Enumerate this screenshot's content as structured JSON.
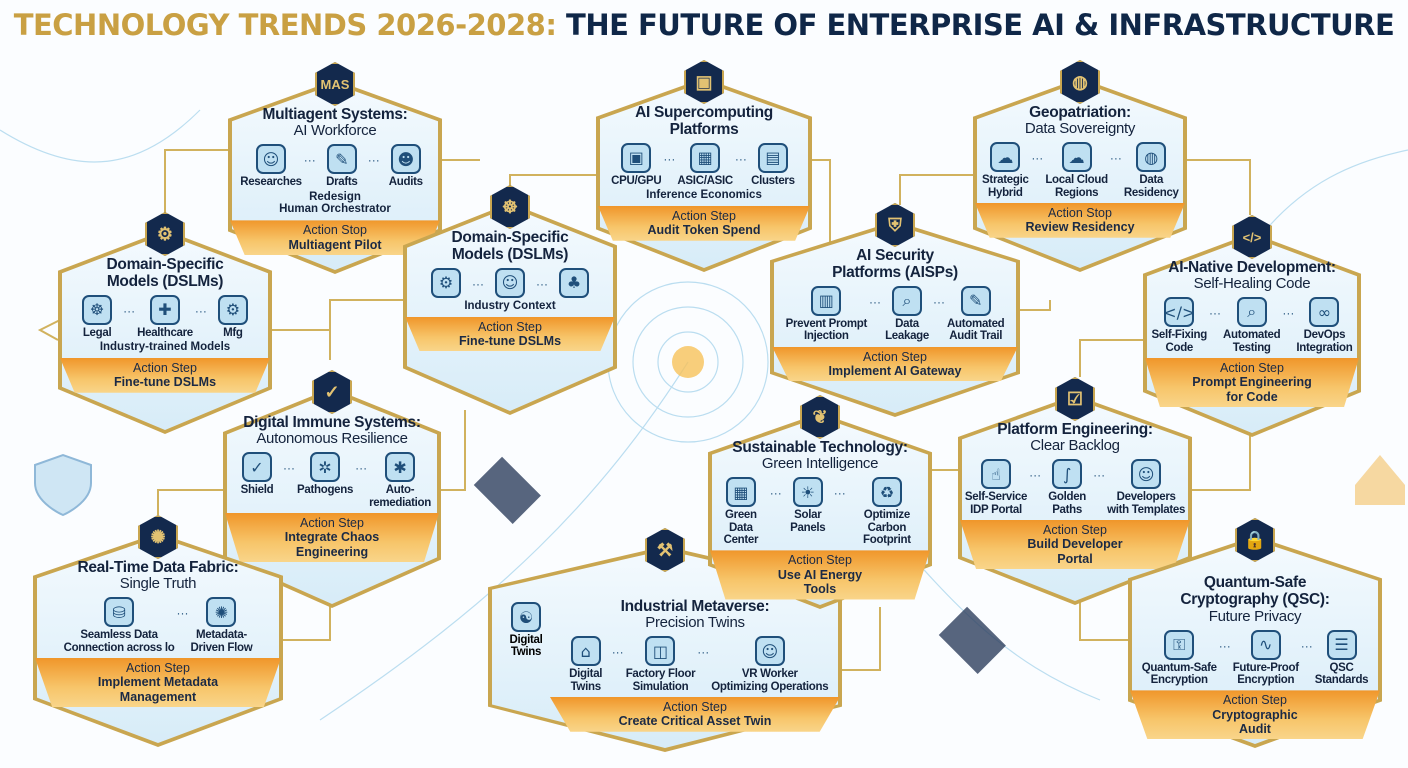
{
  "header": {
    "title_gold": "TECHNOLOGY TRENDS 2026-2028:",
    "title_navy": " THE FUTURE OF ENTERPRISE AI & INFRASTRUCTURE"
  },
  "colors": {
    "gold": "#c9a043",
    "navy": "#0f2748",
    "action_orange": "#f0962a",
    "panel_blue": "#d7ecf8"
  },
  "cards": [
    {
      "id": "mas",
      "badge": "MAS",
      "badge_is_text": true,
      "title": "Multiagent Systems:",
      "subtitle": "AI Workforce",
      "items": [
        {
          "label": "Researches",
          "icon": "robot-icon",
          "glyph": "☺"
        },
        {
          "label": "Drafts",
          "icon": "document-pen-icon",
          "glyph": "✎"
        },
        {
          "label": "Audits",
          "icon": "person-chat-icon",
          "glyph": "☻"
        }
      ],
      "note": "Redesign\nHuman Orchestrator",
      "action_label": "Action Stop",
      "action": "Multiagent Pilot"
    },
    {
      "id": "dslm-left",
      "badge": "⚙",
      "badge_icon": "network-gear-icon",
      "title": "Domain-Specific\nModels (DSLMs)",
      "subtitle": "",
      "items": [
        {
          "label": "Legal",
          "icon": "brain-icon",
          "glyph": "☸"
        },
        {
          "label": "Healthcare",
          "icon": "brain-health-icon",
          "glyph": "✚"
        },
        {
          "label": "Mfg",
          "icon": "gear-icon",
          "glyph": "⚙"
        }
      ],
      "note": "Industry-trained Models",
      "action_label": "Action Step",
      "action": "Fine-tune DSLMs"
    },
    {
      "id": "dslm-center",
      "badge": "☸",
      "badge_icon": "brain-icon",
      "title": "Domain-Specific\nModels (DSLMs)",
      "subtitle": "",
      "items": [
        {
          "label": "",
          "icon": "gear-circuit-icon",
          "glyph": "⚙"
        },
        {
          "label": "",
          "icon": "doctor-icon",
          "glyph": "☺"
        },
        {
          "label": "",
          "icon": "org-chart-icon",
          "glyph": "♣"
        }
      ],
      "note": "Industry Context",
      "action_label": "Action Step",
      "action": "Fine-tune DSLMs"
    },
    {
      "id": "supercomp",
      "badge": "▣",
      "badge_icon": "chip-icon",
      "title": "AI Supercomputing\nPlatforms",
      "subtitle": "",
      "items": [
        {
          "label": "CPU/GPU",
          "icon": "cpu-icon",
          "glyph": "▣"
        },
        {
          "label": "ASIC/ASIC",
          "icon": "asic-chip-icon",
          "glyph": "▦"
        },
        {
          "label": "Clusters",
          "icon": "gpu-icon",
          "glyph": "▤"
        }
      ],
      "note": "Inference Economics",
      "action_label": "Action Step",
      "action": "Audit Token Spend"
    },
    {
      "id": "security",
      "badge": "⛨",
      "badge_icon": "shield-lock-icon",
      "title": "AI Security\nPlatforms (AISPs)",
      "subtitle": "",
      "items": [
        {
          "label": "Prevent Prompt\nInjection",
          "icon": "firewall-icon",
          "glyph": "▥"
        },
        {
          "label": "Data\nLeakage",
          "icon": "shield-search-icon",
          "glyph": "⌕"
        },
        {
          "label": "Automated\nAudit Trail",
          "icon": "audit-document-icon",
          "glyph": "✎"
        }
      ],
      "note": "",
      "action_label": "Action Step",
      "action": "Implement AI Gateway"
    },
    {
      "id": "geo",
      "badge": "◍",
      "badge_icon": "globe-icon",
      "title": "Geopatriation:",
      "subtitle": "Data Sovereignty",
      "items": [
        {
          "label": "Strategic\nHybrid",
          "icon": "cloud-pin-icon",
          "glyph": "☁"
        },
        {
          "label": "Local Cloud\nRegions",
          "icon": "cloud-globe-icon",
          "glyph": "☁"
        },
        {
          "label": "Data\nResidency",
          "icon": "globe-pin-icon",
          "glyph": "◍"
        }
      ],
      "note": "",
      "action_label": "Action Stop",
      "action": "Review Residency"
    },
    {
      "id": "ainative",
      "badge": "</>",
      "badge_is_text": true,
      "badge_icon": "code-window-icon",
      "title": "AI-Native Development:",
      "subtitle": "Self-Healing Code",
      "items": [
        {
          "label": "Self-Fixing\nCode",
          "icon": "code-icon",
          "glyph": "</>"
        },
        {
          "label": "Automated\nTesting",
          "icon": "test-search-icon",
          "glyph": "⌕"
        },
        {
          "label": "DevOps\nIntegration",
          "icon": "gears-infinity-icon",
          "glyph": "∞"
        }
      ],
      "note": "",
      "action_label": "Action Step",
      "action": "Prompt Engineering\nfor Code"
    },
    {
      "id": "immune",
      "badge": "✓",
      "badge_icon": "shield-check-icon",
      "title": "Digital Immune Systems:",
      "subtitle": "Autonomous Resilience",
      "items": [
        {
          "label": "Shield",
          "icon": "shield-check-icon",
          "glyph": "✓"
        },
        {
          "label": "Pathogens",
          "icon": "virus-icon",
          "glyph": "✲"
        },
        {
          "label": "Auto-\nremediation",
          "icon": "bug-icon",
          "glyph": "✱"
        }
      ],
      "note": "",
      "action_label": "Action Step",
      "action": "Integrate Chaos\nEngineering"
    },
    {
      "id": "fabric",
      "badge": "✺",
      "badge_icon": "network-hub-icon",
      "title": "Real-Time Data Fabric:",
      "subtitle": "Single Truth",
      "items": [
        {
          "label": "Seamless Data\nConnection across lo",
          "icon": "database-network-icon",
          "glyph": "⛁"
        },
        {
          "label": "Metadata-\nDriven Flow",
          "icon": "data-hub-icon",
          "glyph": "✺"
        }
      ],
      "note": "",
      "action_label": "Action Step",
      "action": "Implement Metadata\nManagement"
    },
    {
      "id": "metaverse",
      "badge": "⚒",
      "badge_icon": "engineers-icon",
      "title": "Industrial Metaverse:",
      "subtitle": "Precision Twins",
      "side_item": {
        "label": "Digital\nTwins",
        "icon": "twin-brains-icon",
        "glyph": "☯"
      },
      "items": [
        {
          "label": "Digital\nTwins",
          "icon": "factory-icon",
          "glyph": "⌂"
        },
        {
          "label": "Factory Floor\nSimulation",
          "icon": "vr-headset-icon",
          "glyph": "◫"
        },
        {
          "label": "VR Worker\nOptimizing Operations",
          "icon": "vr-worker-icon",
          "glyph": "☺"
        }
      ],
      "note": "",
      "action_label": "Action Step",
      "action": "Create Critical Asset Twin"
    },
    {
      "id": "sustain",
      "badge": "❦",
      "badge_icon": "leaf-icon",
      "title": "Sustainable Technology:",
      "subtitle": "Green Intelligence",
      "items": [
        {
          "label": "Green\nData Center",
          "icon": "green-building-icon",
          "glyph": "▦"
        },
        {
          "label": "Solar\nPanels",
          "icon": "solar-panel-icon",
          "glyph": "☀"
        },
        {
          "label": "Optimize\nCarbon Footprint",
          "icon": "recycle-globe-icon",
          "glyph": "♻"
        }
      ],
      "note": "",
      "action_label": "Action Step",
      "action": "Use AI Energy\nTools"
    },
    {
      "id": "platform",
      "badge": "☑",
      "badge_icon": "checklist-icon",
      "title": "Platform Engineering:",
      "subtitle": "Clear Backlog",
      "items": [
        {
          "label": "Self-Service\nIDP Portal",
          "icon": "portal-click-icon",
          "glyph": "☝"
        },
        {
          "label": "Golden\nPaths",
          "icon": "road-icon",
          "glyph": "∫"
        },
        {
          "label": "Developers\nwith Templates",
          "icon": "developer-icon",
          "glyph": "☺"
        }
      ],
      "note": "",
      "action_label": "Action Step",
      "action": "Build Developer\nPortal"
    },
    {
      "id": "qsc",
      "badge": "🔒",
      "badge_icon": "padlock-icon",
      "title": "Quantum-Safe\nCryptography (QSC):",
      "subtitle": "Future Privacy",
      "items": [
        {
          "label": "Quantum-Safe\nEncryption",
          "icon": "padlock-icon",
          "glyph": "⚿"
        },
        {
          "label": "Future-Proof\nEncryption",
          "icon": "waveform-icon",
          "glyph": "∿"
        },
        {
          "label": "QSC\nStandards",
          "icon": "clipboard-icon",
          "glyph": "☰"
        }
      ],
      "note": "",
      "action_label": "Action Step",
      "action": "Cryptographic\nAudit"
    }
  ]
}
